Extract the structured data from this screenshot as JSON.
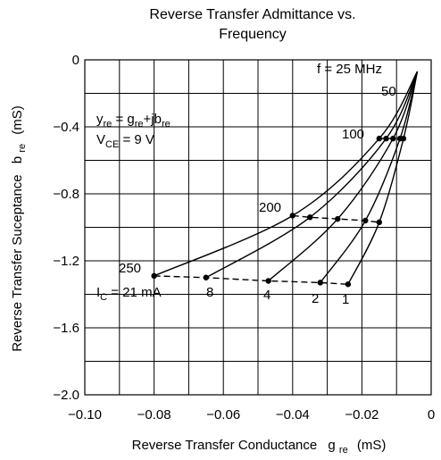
{
  "chart_data": {
    "type": "line",
    "title": "Reverse Transfer Admittance vs. Frequency",
    "title_lines": [
      "Reverse Transfer Admittance vs.",
      "Frequency"
    ],
    "xlabel": "Reverse Transfer Conductance",
    "xlabel_symbol": "g",
    "xlabel_symbol_sub": "re",
    "xlabel_unit": "(mS)",
    "ylabel": "Reverse Transfer Suceptance",
    "ylabel_symbol": "b",
    "ylabel_symbol_sub": "re",
    "ylabel_unit": "(mS)",
    "xlim": [
      -0.1,
      0
    ],
    "ylim": [
      -2.0,
      0
    ],
    "x_ticks": [
      -0.1,
      -0.08,
      -0.06,
      -0.04,
      -0.02,
      0
    ],
    "x_tick_labels": [
      "−0.10",
      "−0.08",
      "−0.06",
      "−0.04",
      "−0.02",
      "0"
    ],
    "y_ticks": [
      0,
      -0.4,
      -0.8,
      -1.2,
      -1.6,
      -2.0
    ],
    "y_tick_labels": [
      "0",
      "−0.4",
      "−0.8",
      "−1.2",
      "−1.6",
      "−2.0"
    ],
    "x_minor_step": 0.01,
    "y_minor_step": 0.2,
    "grid": true,
    "frequencies_mhz": [
      25,
      50,
      100,
      200,
      250
    ],
    "series": [
      {
        "name": "I_C = 21 mA",
        "label": "I_C = 21 mA",
        "x": [
          -0.004,
          -0.015,
          -0.04,
          -0.08
        ],
        "y": [
          -0.07,
          -0.47,
          -0.93,
          -1.29
        ]
      },
      {
        "name": "8",
        "label": "8",
        "x": [
          -0.004,
          -0.013,
          -0.035,
          -0.065
        ],
        "y": [
          -0.07,
          -0.47,
          -0.94,
          -1.3
        ]
      },
      {
        "name": "4",
        "label": "4",
        "x": [
          -0.004,
          -0.011,
          -0.027,
          -0.047
        ],
        "y": [
          -0.07,
          -0.47,
          -0.95,
          -1.32
        ]
      },
      {
        "name": "2",
        "label": "2",
        "x": [
          -0.004,
          -0.009,
          -0.019,
          -0.032
        ],
        "y": [
          -0.07,
          -0.47,
          -0.96,
          -1.33
        ]
      },
      {
        "name": "1",
        "label": "1",
        "x": [
          -0.004,
          -0.008,
          -0.015,
          -0.024
        ],
        "y": [
          -0.07,
          -0.47,
          -0.97,
          -1.34
        ]
      }
    ],
    "annotations": {
      "f_label": "f = 25 MHz",
      "freq_50": "50",
      "freq_100": "100",
      "freq_200": "200",
      "freq_250": "250",
      "yre_equation": "y",
      "yre_parts": [
        "y",
        "re",
        " = g",
        "re",
        "+jb",
        "re"
      ],
      "vce_parts": [
        "V",
        "CE",
        " = 9 V"
      ],
      "ic_parts": [
        "I",
        "C",
        " = 21 mA"
      ]
    }
  }
}
